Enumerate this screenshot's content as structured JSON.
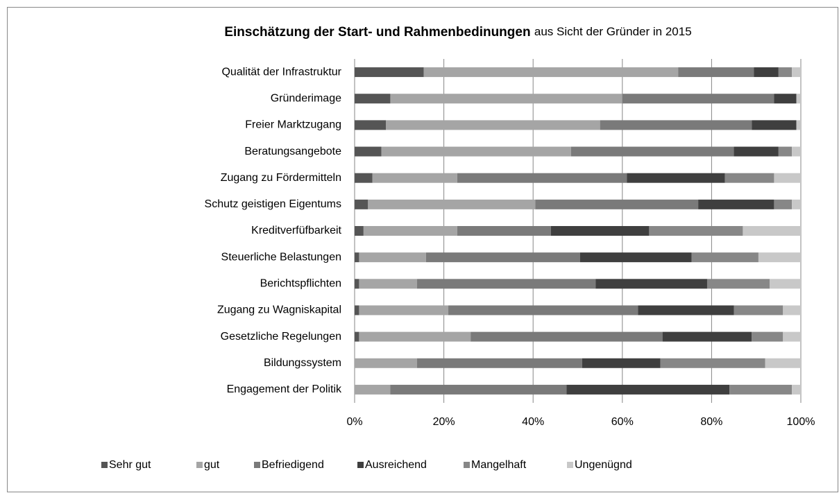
{
  "chart_data": {
    "type": "stacked-bar-horizontal",
    "title": "Einschätzung der Start- und Rahmenbedinungen",
    "subtitle": "aus Sicht der Gründer in 2015",
    "categories": [
      "Qualität der Infrastruktur",
      "Gründerimage",
      "Freier Marktzugang",
      "Beratungsangebote",
      "Zugang zu Fördermitteln",
      "Schutz geistigen Eigentums",
      "Kreditverfüfbarkeit",
      "Steuerliche Belastungen",
      "Berichtspflichten",
      "Zugang zu Wagniskapital",
      "Gesetzliche Regelungen",
      "Bildungssystem",
      "Engagement der Politik"
    ],
    "series": [
      {
        "name": "Sehr gut",
        "color": "#555555",
        "values": [
          15.5,
          8,
          7,
          6,
          4,
          3,
          2,
          1,
          1,
          1,
          1,
          0,
          0
        ]
      },
      {
        "name": "gut",
        "color": "#a5a5a5",
        "values": [
          57,
          52,
          48,
          42.5,
          19,
          37.5,
          21,
          15,
          13,
          20,
          25,
          14,
          8
        ]
      },
      {
        "name": "Befriedigend",
        "color": "#7a7a7a",
        "values": [
          17,
          34,
          34,
          36.5,
          38,
          36.5,
          21,
          34.5,
          40,
          42.5,
          43,
          37,
          39.5
        ]
      },
      {
        "name": "Ausreichend",
        "color": "#3f3f3f",
        "values": [
          5.5,
          5,
          10,
          10,
          22,
          17,
          22,
          25,
          25,
          21.5,
          20,
          17.5,
          36.5
        ]
      },
      {
        "name": "Mangelhaft",
        "color": "#878787",
        "values": [
          3,
          0,
          0,
          3,
          11,
          4,
          21,
          15,
          14,
          11,
          7,
          23.5,
          14
        ]
      },
      {
        "name": "Ungenügnd",
        "color": "#c8c8c8",
        "values": [
          2,
          1,
          1,
          2,
          6,
          2,
          13,
          9.5,
          7,
          4,
          4,
          8,
          2
        ]
      }
    ],
    "xlim": [
      0,
      100
    ],
    "xticks": [
      {
        "value": 0,
        "label": "0%"
      },
      {
        "value": 20,
        "label": "20%"
      },
      {
        "value": 40,
        "label": "40%"
      },
      {
        "value": 60,
        "label": "60%"
      },
      {
        "value": 80,
        "label": "80%"
      },
      {
        "value": 100,
        "label": "100%"
      }
    ],
    "grid": true,
    "legend": "bottom"
  }
}
